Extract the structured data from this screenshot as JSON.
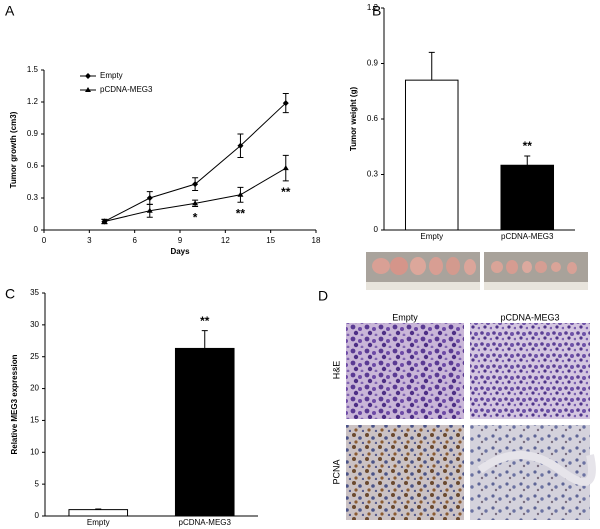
{
  "chart_data": [
    {
      "type": "line",
      "label": "A",
      "x_label": "Days",
      "y_label": "Tumor growth (cm3)",
      "x": [
        4,
        7,
        10,
        13,
        16
      ],
      "xlim": [
        0,
        18
      ],
      "xticks": [
        0,
        3,
        6,
        9,
        12,
        15,
        18
      ],
      "ylim": [
        0,
        1.5
      ],
      "yticks": [
        0,
        0.3,
        0.6,
        0.9,
        1.2,
        1.5
      ],
      "series": [
        {
          "name": "Empty",
          "color": "#000000",
          "marker": "diamond",
          "values": [
            0.08,
            0.3,
            0.43,
            0.79,
            1.19
          ],
          "errors": [
            0.02,
            0.06,
            0.06,
            0.11,
            0.09
          ]
        },
        {
          "name": "pCDNA-MEG3",
          "color": "#000000",
          "marker": "triangle",
          "values": [
            0.08,
            0.18,
            0.25,
            0.33,
            0.58
          ],
          "errors": [
            0.02,
            0.06,
            0.03,
            0.07,
            0.12
          ],
          "significance": [
            null,
            null,
            "*",
            "**",
            "**"
          ]
        }
      ]
    },
    {
      "type": "bar",
      "label": "B",
      "y_label": "Tumor weight (g)",
      "categories": [
        "Empty",
        "pCDNA-MEG3"
      ],
      "values": [
        0.81,
        0.35
      ],
      "errors": [
        0.15,
        0.05
      ],
      "colors": [
        "#ffffff",
        "#000000"
      ],
      "significance": [
        null,
        "**"
      ],
      "ylim": [
        0,
        1.2
      ],
      "yticks": [
        0,
        0.3,
        0.6,
        0.9,
        1.2
      ]
    },
    {
      "type": "bar",
      "label": "C",
      "y_label": "Relative MEG3 expression",
      "categories": [
        "Empty",
        "pCDNA-MEG3"
      ],
      "values": [
        1.0,
        26.3
      ],
      "errors": [
        0.1,
        2.8
      ],
      "colors": [
        "#ffffff",
        "#000000"
      ],
      "significance": [
        null,
        "**"
      ],
      "ylim": [
        0,
        35
      ],
      "yticks": [
        0,
        5,
        10,
        15,
        20,
        25,
        30,
        35
      ]
    }
  ],
  "panel_d": {
    "label": "D",
    "columns": [
      "Empty",
      "pCDNA-MEG3"
    ],
    "rows": [
      "H&E",
      "PCNA"
    ]
  }
}
